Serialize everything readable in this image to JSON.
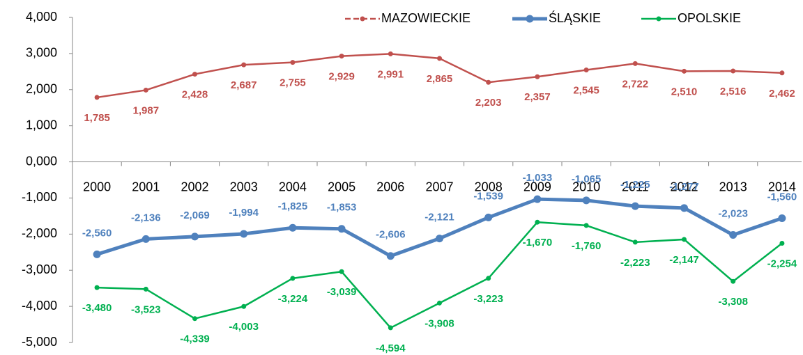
{
  "chart_data": {
    "type": "line",
    "categories": [
      "2000",
      "2001",
      "2002",
      "2003",
      "2004",
      "2005",
      "2006",
      "2007",
      "2008",
      "2009",
      "2010",
      "2011",
      "2012",
      "2013",
      "2014"
    ],
    "series": [
      {
        "name": "MAZOWIECKIE",
        "color": "#c0504d",
        "values": [
          1.785,
          1.987,
          2.428,
          2.687,
          2.755,
          2.929,
          2.991,
          2.865,
          2.203,
          2.357,
          2.545,
          2.722,
          2.51,
          2.516,
          2.462
        ],
        "value_labels": [
          "1,785",
          "1,987",
          "2,428",
          "2,687",
          "2,755",
          "2,929",
          "2,991",
          "2,865",
          "2,203",
          "2,357",
          "2,545",
          "2,722",
          "2,510",
          "2,516",
          "2,462"
        ]
      },
      {
        "name": "ŚLĄSKIE",
        "color": "#4f81bd",
        "values": [
          -2.56,
          -2.136,
          -2.069,
          -1.994,
          -1.825,
          -1.853,
          -2.606,
          -2.121,
          -1.539,
          -1.033,
          -1.065,
          -1.225,
          -1.277,
          -2.023,
          -1.56
        ],
        "value_labels": [
          "-2,560",
          "-2,136",
          "-2,069",
          "-1,994",
          "-1,825",
          "-1,853",
          "-2,606",
          "-2,121",
          "-1,539",
          "-1,033",
          "-1,065",
          "-1,225",
          "-1,277",
          "-2,023",
          "-1,560"
        ]
      },
      {
        "name": "OPOLSKIE",
        "color": "#00b050",
        "values": [
          -3.48,
          -3.523,
          -4.339,
          -4.003,
          -3.224,
          -3.039,
          -4.594,
          -3.908,
          -3.223,
          -1.67,
          -1.76,
          -2.223,
          -2.147,
          -3.308,
          -2.254
        ],
        "value_labels": [
          "-3,480",
          "-3,523",
          "-4,339",
          "-4,003",
          "-3,224",
          "-3,039",
          "-4,594",
          "-3,908",
          "-3,223",
          "-1,670",
          "-1,760",
          "-2,223",
          "-2,147",
          "-3,308",
          "-2,254"
        ]
      }
    ],
    "ylim": [
      -5,
      4
    ],
    "yticks": [
      {
        "value": -5,
        "label": "-5,000"
      },
      {
        "value": -4,
        "label": "-4,000"
      },
      {
        "value": -3,
        "label": "-3,000"
      },
      {
        "value": -2,
        "label": "-2,000"
      },
      {
        "value": -1,
        "label": "-1,000"
      },
      {
        "value": 0,
        "label": "0,000"
      },
      {
        "value": 1,
        "label": "1,000"
      },
      {
        "value": 2,
        "label": "2,000"
      },
      {
        "value": 3,
        "label": "3,000"
      },
      {
        "value": 4,
        "label": "4,000"
      }
    ],
    "legend": "top-right"
  }
}
